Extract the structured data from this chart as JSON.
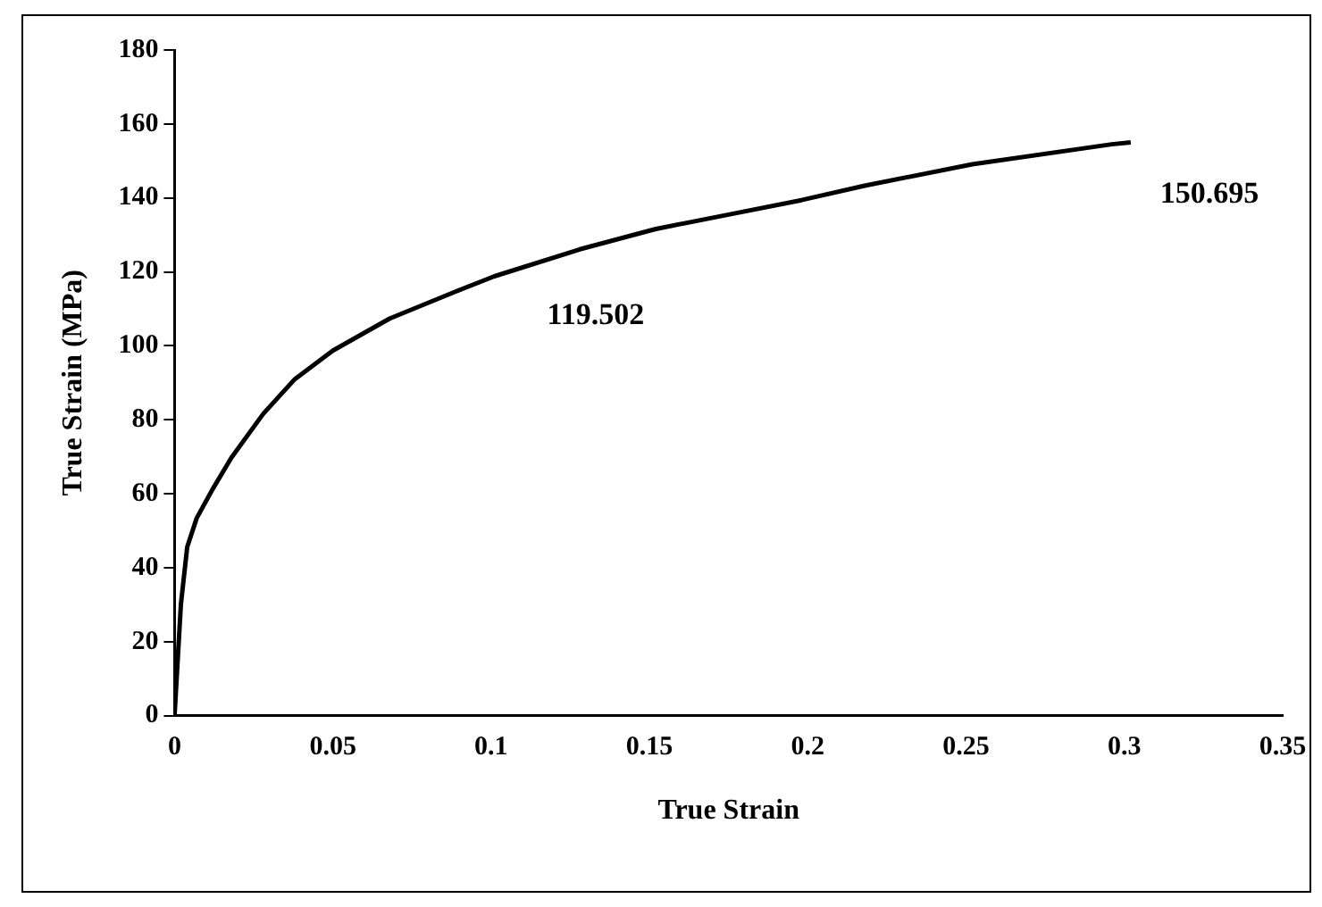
{
  "chart_data": {
    "type": "line",
    "xlabel": "True Strain",
    "ylabel": "True Strain (MPa)",
    "x": [
      0,
      0.002,
      0.004,
      0.007,
      0.012,
      0.018,
      0.028,
      0.038,
      0.05,
      0.068,
      0.088,
      0.101,
      0.128,
      0.152,
      0.175,
      0.198,
      0.218,
      0.252,
      0.296,
      0.302
    ],
    "series": [
      {
        "color": "#000000",
        "values": [
          0,
          30,
          45.6,
          53.4,
          61.2,
          69.8,
          81.6,
          91,
          98.7,
          107.4,
          114.4,
          118.8,
          126.1,
          131.6,
          135.5,
          139.4,
          143.3,
          149.1,
          154.5,
          155
        ]
      }
    ],
    "xlim": [
      0,
      0.35
    ],
    "xticks": [
      0,
      0.05,
      0.1,
      0.15,
      0.2,
      0.25,
      0.3,
      0.35
    ],
    "ylim": [
      0,
      180
    ],
    "yticks": [
      0,
      20,
      40,
      60,
      80,
      100,
      120,
      140,
      160,
      180
    ],
    "grid": false,
    "legend": false,
    "marker": "none",
    "line_style": "solid",
    "annotations": [
      "119.502",
      "150.695"
    ]
  }
}
